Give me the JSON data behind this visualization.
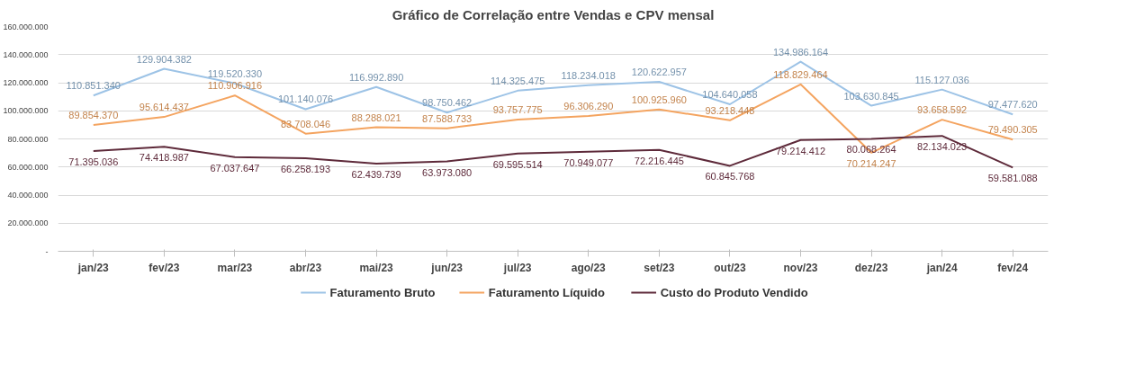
{
  "chart_data": {
    "type": "line",
    "title": "Gráfico de Correlação entre Vendas e CPV mensal",
    "categories": [
      "jan/23",
      "fev/23",
      "mar/23",
      "abr/23",
      "mai/23",
      "jun/23",
      "jul/23",
      "ago/23",
      "set/23",
      "out/23",
      "nov/23",
      "dez/23",
      "jan/24",
      "fev/24"
    ],
    "series": [
      {
        "name": "Faturamento Bruto",
        "color": "#9dc3e6",
        "values": [
          110851340,
          129904382,
          119520330,
          101140076,
          116992890,
          98750462,
          114325475,
          118234018,
          120622957,
          104640058,
          134986164,
          103630845,
          115127036,
          97477620
        ],
        "value_labels": [
          "110.851.340",
          "129.904.382",
          "119.520.330",
          "101.140.076",
          "116.992.890",
          "98.750.462",
          "114.325.475",
          "118.234.018",
          "120.622.957",
          "104.640.058",
          "134.986.164",
          "103.630.845",
          "115.127.036",
          "97.477.620"
        ]
      },
      {
        "name": "Faturamento Líquido",
        "color": "#f4a460",
        "values": [
          89854370,
          95614437,
          110906916,
          83708046,
          88288021,
          87588733,
          93757775,
          96306290,
          100925960,
          93218448,
          118829464,
          70214247,
          93658592,
          79490305
        ],
        "value_labels": [
          "89.854.370",
          "95.614.437",
          "110.906.916",
          "83.708.046",
          "88.288.021",
          "87.588.733",
          "93.757.775",
          "96.306.290",
          "100.925.960",
          "93.218.448",
          "118.829.464",
          "70.214.247",
          "93.658.592",
          "79.490.305"
        ]
      },
      {
        "name": "Custo do Produto Vendido",
        "color": "#5e2a3a",
        "values": [
          71395036,
          74418987,
          67037647,
          66258193,
          62439739,
          63973080,
          69595514,
          70949077,
          72216445,
          60845768,
          79214412,
          80068264,
          82134023,
          59581088
        ],
        "value_labels": [
          "71.395.036",
          "74.418.987",
          "67.037.647",
          "66.258.193",
          "62.439.739",
          "63.973.080",
          "69.595.514",
          "70.949.077",
          "72.216.445",
          "60.845.768",
          "79.214.412",
          "80.068.264",
          "82.134.023",
          "59.581.088"
        ]
      }
    ],
    "ylim": [
      0,
      160000000
    ],
    "yticks": [
      {
        "value": 0,
        "label": "-"
      },
      {
        "value": 20000000,
        "label": "20.000.000"
      },
      {
        "value": 40000000,
        "label": "40.000.000"
      },
      {
        "value": 60000000,
        "label": "60.000.000"
      },
      {
        "value": 80000000,
        "label": "80.000.000"
      },
      {
        "value": 100000000,
        "label": "100.000.000"
      },
      {
        "value": 120000000,
        "label": "120.000.000"
      },
      {
        "value": 140000000,
        "label": "140.000.000"
      },
      {
        "value": 160000000,
        "label": "160.000.000"
      }
    ],
    "grid": "y",
    "legend": "bottom",
    "data_labels": true,
    "line_style": "solid"
  }
}
